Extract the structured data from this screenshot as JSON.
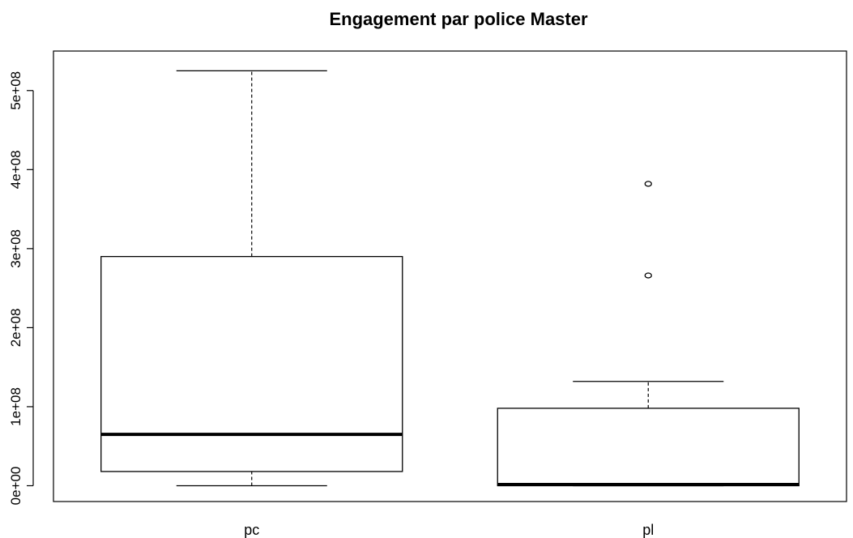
{
  "chart_data": {
    "type": "box",
    "title": "Engagement par police Master",
    "xlabel": "",
    "ylabel": "",
    "ylim": [
      -20000000,
      550000000
    ],
    "yticks": [
      0,
      100000000,
      200000000,
      300000000,
      400000000,
      500000000
    ],
    "ytick_labels": [
      "0e+00",
      "1e+08",
      "2e+08",
      "3e+08",
      "4e+08",
      "5e+08"
    ],
    "categories": [
      "pc",
      "pl"
    ],
    "boxes": [
      {
        "category": "pc",
        "whisker_low": 0,
        "q1": 18000000,
        "median": 65000000,
        "q3": 290000000,
        "whisker_high": 525000000,
        "outliers": []
      },
      {
        "category": "pl",
        "whisker_low": 0,
        "q1": 0,
        "median": 1500000,
        "q3": 98000000,
        "whisker_high": 132000000,
        "outliers": [
          266000000,
          382000000
        ]
      }
    ],
    "grid": false,
    "legend": "none"
  }
}
